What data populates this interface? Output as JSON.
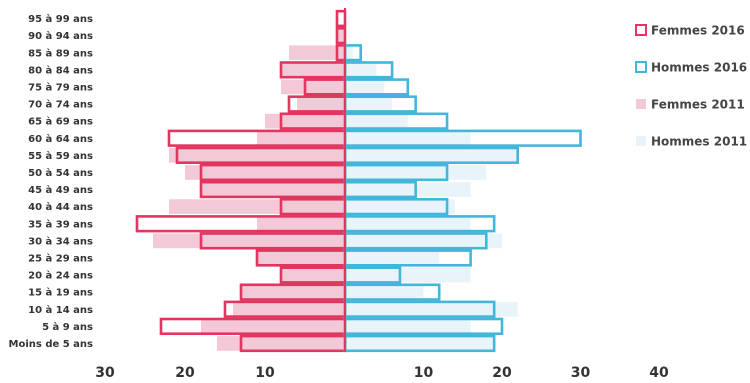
{
  "chart_data": {
    "type": "bar",
    "orientation": "horizontal",
    "title": "",
    "categories": [
      "95 à 99 ans",
      "90 à 94 ans",
      "85 à 89 ans",
      "80 à 84 ans",
      "75 à 79 ans",
      "70 à 74 ans",
      "65 à 69 ans",
      "60 à 64 ans",
      "55 à 59 ans",
      "50 à 54 ans",
      "45 à 49 ans",
      "40 à 44 ans",
      "35 à 39 ans",
      "30 à 34 ans",
      "25 à 29 ans",
      "20 à 24 ans",
      "15 à 19 ans",
      "10 à 14 ans",
      "5 à 9 ans",
      "Moins de 5 ans"
    ],
    "left_ticks": [
      "30",
      "20",
      "10"
    ],
    "right_ticks": [
      "10",
      "20",
      "30",
      "40"
    ],
    "left_xlim": [
      0,
      32
    ],
    "right_xlim": [
      0,
      40
    ],
    "legend_placement": "right",
    "series": [
      {
        "name": "Femmes 2016",
        "side": "left",
        "style": "outline",
        "color": "#e0365f",
        "values": [
          1,
          1,
          1,
          8,
          5,
          7,
          8,
          22,
          21,
          18,
          18,
          8,
          26,
          18,
          11,
          8,
          13,
          15,
          23,
          13
        ]
      },
      {
        "name": "Hommes 2016",
        "side": "right",
        "style": "outline",
        "color": "#44b6dc",
        "values": [
          0,
          0,
          2,
          6,
          8,
          9,
          13,
          30,
          22,
          13,
          9,
          13,
          19,
          18,
          16,
          7,
          12,
          19,
          20,
          19
        ]
      },
      {
        "name": "Femmes 2011",
        "side": "left",
        "style": "fill",
        "color": "#f4c9d7",
        "values": [
          0,
          1,
          7,
          8,
          8,
          6,
          10,
          11,
          22,
          20,
          18,
          22,
          11,
          24,
          11,
          8,
          13,
          14,
          18,
          16
        ]
      },
      {
        "name": "Hommes 2011",
        "side": "right",
        "style": "fill",
        "color": "#e9f4fa",
        "values": [
          0,
          0,
          1,
          4,
          5,
          6,
          8,
          16,
          22,
          18,
          16,
          14,
          16,
          20,
          12,
          16,
          10,
          22,
          16,
          19
        ]
      }
    ]
  }
}
